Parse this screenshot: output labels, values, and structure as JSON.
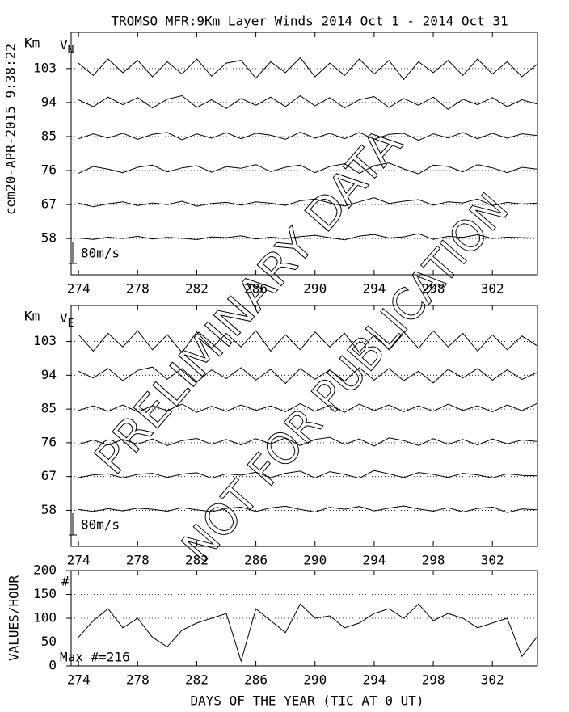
{
  "watermark": [
    "PRELIMINARY DATA",
    "NOT FOR PUBLICATION"
  ],
  "chart_data": [
    {
      "type": "line",
      "title": "TROMSO MFR:9Km Layer Winds 2014 Oct  1 - 2014 Oct 31",
      "timestamp": "cem20-APR-2015  9:38:22",
      "y_unit": "Km",
      "component": "V",
      "component_sub": "N",
      "x": [
        274,
        275,
        276,
        277,
        278,
        279,
        280,
        281,
        282,
        283,
        284,
        285,
        286,
        287,
        288,
        289,
        290,
        291,
        292,
        293,
        294,
        295,
        296,
        297,
        298,
        299,
        300,
        301,
        302,
        303,
        304,
        305
      ],
      "xlim": [
        273.5,
        305.05
      ],
      "xticks": [
        274,
        278,
        282,
        286,
        290,
        294,
        298,
        302
      ],
      "ylim": [
        48.4,
        112.6
      ],
      "yticks": [
        58,
        67,
        76,
        85,
        94,
        103
      ],
      "grid": true,
      "scale_bar": {
        "value": 80,
        "label": "80m/s"
      },
      "series": [
        {
          "color": "#000000",
          "values": [
            2,
            -3,
            5,
            0,
            8,
            -2,
            4,
            1,
            -4,
            6,
            3,
            10,
            -2,
            5,
            0,
            7,
            12,
            3,
            -5,
            9,
            15,
            2,
            6,
            18,
            -3,
            8,
            4,
            14,
            0,
            5,
            3,
            2
          ]
        },
        {
          "color": "#000000",
          "values": [
            5,
            -8,
            3,
            10,
            -4,
            6,
            0,
            12,
            -6,
            4,
            8,
            -2,
            10,
            5,
            -3,
            14,
            20,
            6,
            -5,
            10,
            25,
            4,
            12,
            18,
            -2,
            10,
            6,
            20,
            -4,
            8,
            2,
            5
          ]
        },
        {
          "color": "#000000",
          "values": [
            -10,
            15,
            5,
            -8,
            12,
            20,
            -5,
            10,
            18,
            -6,
            14,
            8,
            22,
            -4,
            12,
            20,
            -8,
            15,
            25,
            -10,
            18,
            28,
            6,
            -12,
            20,
            15,
            -5,
            22,
            10,
            -8,
            12,
            5
          ]
        },
        {
          "color": "#000000",
          "values": [
            -8,
            10,
            -5,
            12,
            -10,
            8,
            15,
            -12,
            10,
            -6,
            14,
            -8,
            12,
            5,
            -10,
            16,
            -6,
            12,
            -8,
            15,
            -10,
            8,
            12,
            -14,
            10,
            -5,
            15,
            -8,
            12,
            -6,
            10,
            4
          ]
        },
        {
          "color": "#000000",
          "values": [
            10,
            -15,
            20,
            -8,
            18,
            -20,
            12,
            25,
            -18,
            10,
            -22,
            15,
            -10,
            20,
            -15,
            25,
            -12,
            18,
            -20,
            10,
            22,
            -18,
            15,
            -10,
            20,
            -25,
            12,
            -8,
            18,
            -15,
            10,
            -5
          ]
        },
        {
          "color": "#000000",
          "values": [
            20,
            -25,
            35,
            -15,
            30,
            -30,
            25,
            -20,
            35,
            -28,
            20,
            30,
            -35,
            25,
            -15,
            40,
            -30,
            20,
            -25,
            35,
            -20,
            30,
            -40,
            25,
            -15,
            30,
            -25,
            35,
            -20,
            25,
            -30,
            15
          ]
        }
      ]
    },
    {
      "type": "line",
      "y_unit": "Km",
      "component": "V",
      "component_sub": "E",
      "x": [
        274,
        275,
        276,
        277,
        278,
        279,
        280,
        281,
        282,
        283,
        284,
        285,
        286,
        287,
        288,
        289,
        290,
        291,
        292,
        293,
        294,
        295,
        296,
        297,
        298,
        299,
        300,
        301,
        302,
        303,
        304,
        305
      ],
      "xlim": [
        273.5,
        305.05
      ],
      "xticks": [
        274,
        278,
        282,
        286,
        290,
        294,
        298,
        302
      ],
      "ylim": [
        48.4,
        112.6
      ],
      "yticks": [
        58,
        67,
        76,
        85,
        94,
        103
      ],
      "grid": true,
      "scale_bar": {
        "value": 80,
        "label": "80m/s"
      },
      "series": [
        {
          "color": "#000000",
          "values": [
            3,
            -4,
            6,
            -2,
            8,
            4,
            -3,
            10,
            2,
            -5,
            7,
            12,
            -4,
            9,
            15,
            3,
            -6,
            11,
            4,
            14,
            -2,
            8,
            16,
            5,
            -3,
            10,
            -6,
            7,
            12,
            -8,
            5,
            2
          ]
        },
        {
          "color": "#000000",
          "values": [
            -4,
            6,
            10,
            -5,
            8,
            12,
            -3,
            9,
            14,
            -6,
            10,
            5,
            16,
            -4,
            12,
            20,
            -5,
            18,
            8,
            -6,
            22,
            10,
            -4,
            15,
            8,
            -3,
            12,
            6,
            -5,
            10,
            4,
            3
          ]
        },
        {
          "color": "#000000",
          "values": [
            -6,
            10,
            -8,
            12,
            -5,
            14,
            -10,
            8,
            16,
            -6,
            12,
            -8,
            15,
            -4,
            18,
            -10,
            12,
            20,
            -6,
            14,
            -12,
            18,
            8,
            -10,
            15,
            -6,
            12,
            -8,
            14,
            -4,
            10,
            5
          ]
        },
        {
          "color": "#000000",
          "values": [
            -5,
            12,
            -8,
            15,
            -10,
            12,
            -6,
            18,
            -12,
            10,
            -8,
            15,
            -5,
            12,
            -10,
            20,
            -8,
            14,
            -12,
            18,
            -6,
            15,
            -10,
            12,
            -8,
            18,
            -5,
            12,
            -10,
            15,
            -6,
            20
          ]
        },
        {
          "color": "#000000",
          "values": [
            15,
            -10,
            25,
            -20,
            18,
            30,
            -15,
            25,
            -25,
            20,
            -12,
            28,
            -18,
            22,
            -30,
            25,
            -15,
            20,
            -22,
            28,
            -18,
            25,
            -20,
            15,
            -28,
            22,
            -10,
            25,
            -18,
            20,
            -15,
            10
          ]
        },
        {
          "color": "#000000",
          "values": [
            25,
            -35,
            30,
            -20,
            40,
            -30,
            25,
            -40,
            35,
            -25,
            30,
            -20,
            40,
            -35,
            25,
            -30,
            35,
            -20,
            30,
            -40,
            25,
            -30,
            35,
            -25,
            40,
            -20,
            30,
            -35,
            25,
            -30,
            20,
            -15
          ]
        }
      ]
    },
    {
      "type": "line",
      "y_label": "VALUES/HOUR",
      "x_label": "DAYS OF THE YEAR (TIC AT 0 UT)",
      "symbol": "#",
      "max_note": "Max #=216",
      "x": [
        274,
        275,
        276,
        277,
        278,
        279,
        280,
        281,
        282,
        283,
        284,
        285,
        286,
        287,
        288,
        289,
        290,
        291,
        292,
        293,
        294,
        295,
        296,
        297,
        298,
        299,
        300,
        301,
        302,
        303,
        304,
        305
      ],
      "xlim": [
        273.5,
        305.05
      ],
      "xticks": [
        274,
        278,
        282,
        286,
        290,
        294,
        298,
        302
      ],
      "ylim": [
        0,
        200
      ],
      "yticks": [
        0,
        50,
        100,
        150,
        200
      ],
      "grid": true,
      "series": [
        {
          "color": "#000000",
          "values": [
            60,
            95,
            120,
            80,
            100,
            60,
            40,
            75,
            90,
            100,
            110,
            10,
            120,
            95,
            70,
            130,
            100,
            105,
            80,
            90,
            110,
            120,
            100,
            130,
            95,
            110,
            100,
            80,
            90,
            100,
            20,
            60
          ]
        }
      ]
    }
  ]
}
